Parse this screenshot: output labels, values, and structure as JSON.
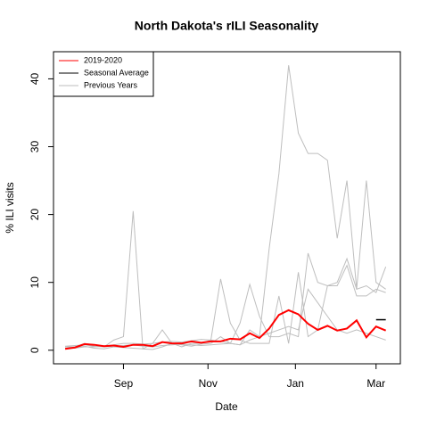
{
  "chart_data": {
    "type": "line",
    "title": "North Dakota's rILI Seasonality",
    "x_label": "Date",
    "y_label": "% ILI visits",
    "x": [
      0,
      1,
      2,
      3,
      4,
      5,
      6,
      7,
      8,
      9,
      10,
      11,
      12,
      13,
      14,
      15,
      16,
      17,
      18,
      19,
      20,
      21,
      22,
      23,
      24,
      25,
      26,
      27,
      28,
      29,
      30,
      31,
      32,
      33
    ],
    "xlim": [
      -1.2,
      34.5
    ],
    "xticks": [
      {
        "value": 6,
        "label": "Sep"
      },
      {
        "value": 14.7,
        "label": "Nov"
      },
      {
        "value": 23.7,
        "label": "Jan"
      },
      {
        "value": 32,
        "label": "Mar"
      }
    ],
    "ylim": [
      -2,
      44
    ],
    "yticks": [
      0,
      10,
      20,
      30,
      40
    ],
    "legend_position": "top-left",
    "series": [
      {
        "name": "Previous Years",
        "color": "#bebebe",
        "width": 1,
        "values": [
          0.6,
          0.7,
          0.8,
          0.6,
          0.5,
          0.6,
          0.7,
          0.8,
          0.6,
          0.5,
          0.7,
          0.8,
          0.9,
          0.8,
          0.7,
          0.8,
          0.9,
          1,
          0.8,
          3,
          2,
          15,
          26,
          42,
          32,
          29,
          29,
          28,
          16.5,
          25,
          9,
          25,
          10,
          9
        ]
      },
      {
        "color": "#bebebe",
        "width": 1,
        "values": [
          0.5,
          0.5,
          1,
          0.8,
          0.5,
          1.5,
          2,
          20.5,
          0.2,
          0.1,
          0.5,
          1,
          0.5,
          1,
          1,
          1.5,
          10.5,
          4,
          1.5,
          1,
          1,
          1,
          8,
          1,
          11.5,
          2,
          3,
          9.5,
          9.5,
          12.5,
          8,
          8,
          9,
          8.5
        ]
      },
      {
        "color": "#bebebe",
        "width": 1,
        "values": [
          0.5,
          0.4,
          0.6,
          0.3,
          0.2,
          0.5,
          0.4,
          0.3,
          0.2,
          1,
          3,
          1,
          0.8,
          0.6,
          0.9,
          1,
          2,
          1,
          4,
          9.7,
          5,
          2,
          2,
          2.5,
          2,
          14.3,
          10,
          9.5,
          10,
          13.5,
          9,
          9.5,
          8.5,
          12.3
        ]
      },
      {
        "color": "#bebebe",
        "width": 1,
        "values": [
          0.3,
          0.3,
          0.5,
          0.5,
          0.6,
          0.8,
          1,
          1,
          0.9,
          1,
          1.2,
          1.3,
          1.2,
          1.4,
          1.6,
          1.5,
          1.3,
          1,
          0.8,
          1.5,
          2,
          2.5,
          3,
          3.5,
          3,
          9,
          7,
          5,
          3,
          2.5,
          3,
          2.5,
          2,
          1.5
        ]
      },
      {
        "name": "Seasonal Average",
        "color": "#000000",
        "width": 1.5,
        "values": [
          null,
          null,
          null,
          null,
          null,
          null,
          null,
          null,
          null,
          null,
          null,
          null,
          null,
          null,
          null,
          null,
          null,
          null,
          null,
          null,
          null,
          null,
          null,
          null,
          null,
          null,
          null,
          null,
          null,
          null,
          null,
          null,
          4.5,
          4.5
        ]
      },
      {
        "name": "2019-2020",
        "color": "#ff0000",
        "width": 2,
        "values": [
          0.2,
          0.4,
          0.9,
          0.8,
          0.6,
          0.7,
          0.5,
          0.8,
          0.8,
          0.6,
          1.2,
          1.0,
          1.0,
          1.3,
          1.1,
          1.3,
          1.3,
          1.7,
          1.6,
          2.5,
          1.8,
          3.2,
          5.2,
          5.9,
          5.3,
          3.9,
          3.0,
          3.6,
          2.9,
          3.2,
          4.4,
          1.9,
          3.5,
          2.9
        ]
      }
    ]
  }
}
